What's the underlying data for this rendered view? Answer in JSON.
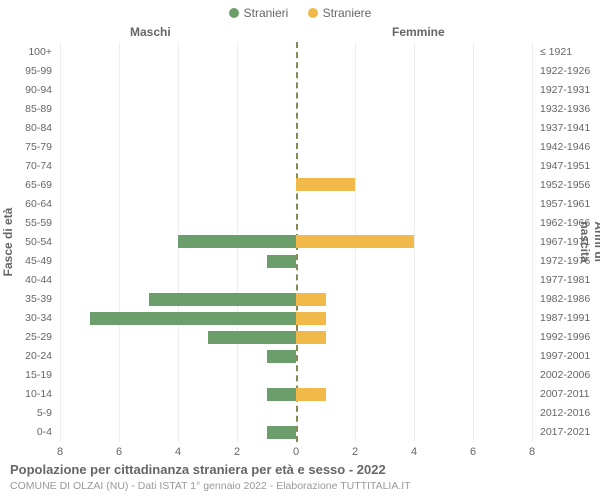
{
  "legend": {
    "male": {
      "label": "Stranieri",
      "color": "#6b9e6b"
    },
    "female": {
      "label": "Straniere",
      "color": "#f0b94a"
    }
  },
  "headers": {
    "male": "Maschi",
    "female": "Femmine"
  },
  "axis_titles": {
    "left": "Fasce di età",
    "right": "Anni di nascita"
  },
  "chart": {
    "type": "population-pyramid",
    "xmax": 8,
    "xticks": [
      8,
      6,
      4,
      2,
      0,
      2,
      4,
      6,
      8
    ],
    "bar_colors": {
      "male": "#6b9e6b",
      "female": "#f0b94a"
    },
    "background_color": "#ffffff",
    "grid_color": "#eeeeee",
    "zero_line_color": "#888855",
    "label_fontsize": 10.5,
    "tick_fontsize": 11,
    "title_fontsize": 13,
    "rows": [
      {
        "age": "100+",
        "birth": "≤ 1921",
        "m": 0,
        "f": 0
      },
      {
        "age": "95-99",
        "birth": "1922-1926",
        "m": 0,
        "f": 0
      },
      {
        "age": "90-94",
        "birth": "1927-1931",
        "m": 0,
        "f": 0
      },
      {
        "age": "85-89",
        "birth": "1932-1936",
        "m": 0,
        "f": 0
      },
      {
        "age": "80-84",
        "birth": "1937-1941",
        "m": 0,
        "f": 0
      },
      {
        "age": "75-79",
        "birth": "1942-1946",
        "m": 0,
        "f": 0
      },
      {
        "age": "70-74",
        "birth": "1947-1951",
        "m": 0,
        "f": 0
      },
      {
        "age": "65-69",
        "birth": "1952-1956",
        "m": 0,
        "f": 2
      },
      {
        "age": "60-64",
        "birth": "1957-1961",
        "m": 0,
        "f": 0
      },
      {
        "age": "55-59",
        "birth": "1962-1966",
        "m": 0,
        "f": 0
      },
      {
        "age": "50-54",
        "birth": "1967-1971",
        "m": 4,
        "f": 4
      },
      {
        "age": "45-49",
        "birth": "1972-1976",
        "m": 1,
        "f": 0
      },
      {
        "age": "40-44",
        "birth": "1977-1981",
        "m": 0,
        "f": 0
      },
      {
        "age": "35-39",
        "birth": "1982-1986",
        "m": 5,
        "f": 1
      },
      {
        "age": "30-34",
        "birth": "1987-1991",
        "m": 7,
        "f": 1
      },
      {
        "age": "25-29",
        "birth": "1992-1996",
        "m": 3,
        "f": 1
      },
      {
        "age": "20-24",
        "birth": "1997-2001",
        "m": 1,
        "f": 0
      },
      {
        "age": "15-19",
        "birth": "2002-2006",
        "m": 0,
        "f": 0
      },
      {
        "age": "10-14",
        "birth": "2007-2011",
        "m": 1,
        "f": 1
      },
      {
        "age": "5-9",
        "birth": "2012-2016",
        "m": 0,
        "f": 0
      },
      {
        "age": "0-4",
        "birth": "2017-2021",
        "m": 1,
        "f": 0
      }
    ]
  },
  "title": "Popolazione per cittadinanza straniera per età e sesso - 2022",
  "subtitle": "COMUNE DI OLZAI (NU) - Dati ISTAT 1° gennaio 2022 - Elaborazione TUTTITALIA.IT"
}
